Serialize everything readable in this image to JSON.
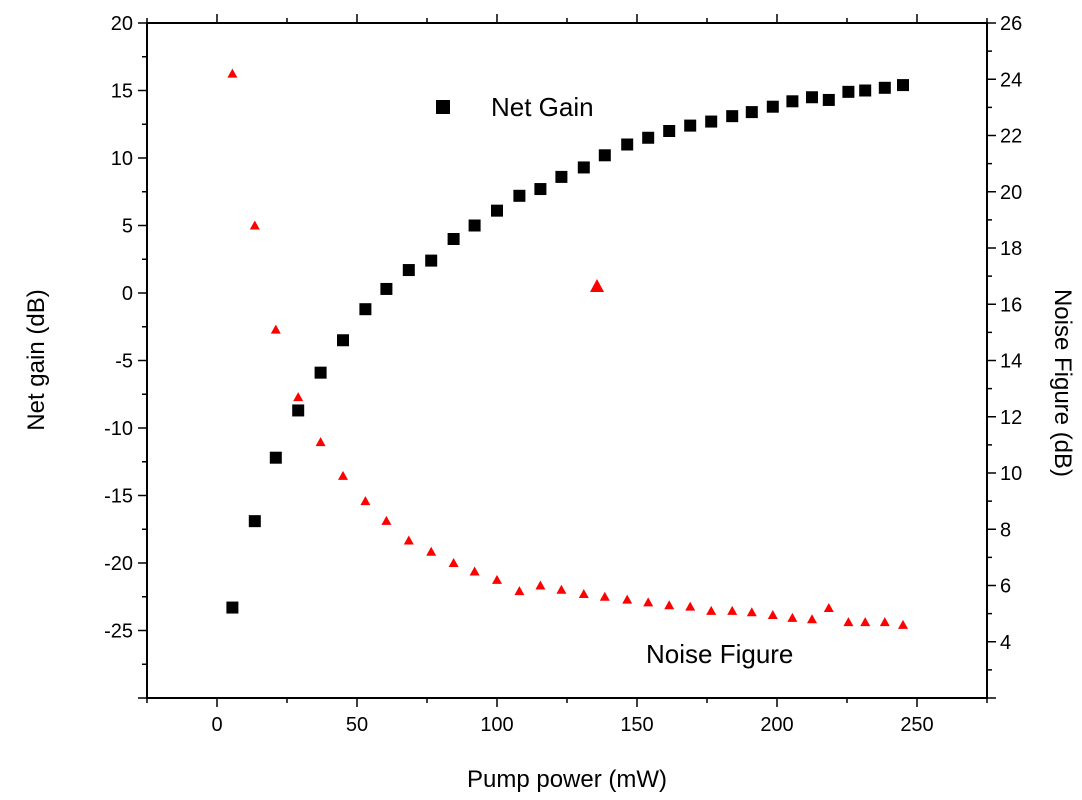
{
  "chart_data": {
    "type": "scatter",
    "xlabel": "Pump power (mW)",
    "ylabel_left": "Net gain (dB)",
    "ylabel_right": "Noise Figure (dB)",
    "xlim": [
      -25,
      275
    ],
    "ylim_left": [
      -30,
      20
    ],
    "ylim_right": [
      2,
      26
    ],
    "x_ticks": [
      0,
      50,
      100,
      150,
      200,
      250
    ],
    "y_left_ticks": [
      -25,
      -20,
      -15,
      -10,
      -5,
      0,
      5,
      10,
      15,
      20
    ],
    "y_right_ticks": [
      4,
      6,
      8,
      10,
      12,
      14,
      16,
      18,
      20,
      22,
      24,
      26
    ],
    "grid": false,
    "series": [
      {
        "name": "Net Gain",
        "axis": "left",
        "marker": "square",
        "color": "#000000",
        "x": [
          5.5,
          13.5,
          21,
          29,
          37,
          45,
          53,
          60.5,
          68.5,
          76.5,
          84.5,
          92,
          100,
          108,
          115.5,
          123,
          131,
          138.5,
          146.5,
          154,
          161.5,
          169,
          176.5,
          184,
          191,
          198.5,
          205.5,
          212.5,
          218.5,
          225.5,
          231.5,
          238.5,
          245
        ],
        "y": [
          -23.3,
          -16.9,
          -12.2,
          -8.7,
          -5.9,
          -3.5,
          -1.2,
          0.3,
          1.7,
          2.4,
          4.0,
          5.0,
          6.1,
          7.2,
          7.7,
          8.6,
          9.3,
          10.2,
          11.0,
          11.5,
          12.0,
          12.4,
          12.7,
          13.1,
          13.4,
          13.8,
          14.2,
          14.5,
          14.3,
          14.9,
          15.0,
          15.2,
          15.4
        ]
      },
      {
        "name": "Noise Figure",
        "axis": "right",
        "marker": "triangle",
        "color": "#ff0000",
        "x": [
          5.5,
          13.5,
          21,
          29,
          37,
          45,
          53,
          60.5,
          68.5,
          76.5,
          84.5,
          92,
          100,
          108,
          115.5,
          123,
          131,
          138.5,
          146.5,
          154,
          161.5,
          169,
          176.5,
          184,
          191,
          198.5,
          205.5,
          212.5,
          218.5,
          225.5,
          231.5,
          238.5,
          245
        ],
        "y": [
          24.2,
          18.8,
          15.1,
          12.7,
          11.1,
          9.9,
          9.0,
          8.3,
          7.6,
          7.2,
          6.8,
          6.5,
          6.2,
          5.8,
          6.0,
          5.85,
          5.7,
          5.6,
          5.5,
          5.4,
          5.3,
          5.25,
          5.1,
          5.1,
          5.05,
          4.95,
          4.85,
          4.8,
          5.2,
          4.7,
          4.7,
          4.7,
          4.6
        ]
      }
    ],
    "legend_placement": "inside, labels next to series"
  }
}
